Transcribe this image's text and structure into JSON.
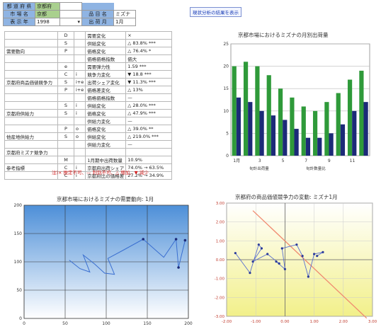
{
  "selector": {
    "rows": [
      {
        "label": "都 道 府 県",
        "value": "京都府",
        "label2": "",
        "value2": ""
      },
      {
        "label": "市 場 名",
        "value": "京都",
        "label2": "品 目 名",
        "value2": "ミズナ"
      },
      {
        "label": "表 示 年",
        "value": "1998",
        "label2": "出 荷 月",
        "value2": "1月"
      }
    ],
    "button_label": "現状分析の結果を表示"
  },
  "table": {
    "groups": [
      {
        "name": "需要動向",
        "rows": [
          {
            "sym": "D",
            "sub": "",
            "name": "需要変化",
            "val": "×"
          },
          {
            "sym": "S",
            "sub": "",
            "name": "供給変化",
            "val": "△ 83.8% ***"
          },
          {
            "sym": "P",
            "sub": "",
            "name": "価格変化",
            "val": "△ 76.4% *"
          },
          {
            "sym": "",
            "sub": "",
            "name": "価格価格指数",
            "val": "価大"
          },
          {
            "sym": "e",
            "sub": "",
            "name": "需要弾力性",
            "val": "1.59 ***"
          }
        ]
      },
      {
        "name": "京都府商品価値競争力",
        "rows": [
          {
            "sym": "C",
            "sub": "i",
            "name": "競争力変化",
            "val": "▼ 18.8 ***"
          },
          {
            "sym": "S",
            "sub": "i+e",
            "name": "出荷シェア変化",
            "val": "▼ 11.3% ***"
          },
          {
            "sym": "P",
            "sub": "i+e",
            "name": "価格差変化",
            "val": "△ 13%"
          },
          {
            "sym": "",
            "sub": "",
            "name": "価格価格指数",
            "val": "—"
          }
        ]
      },
      {
        "name": "京都府供給力",
        "rows": [
          {
            "sym": "S",
            "sub": "i",
            "name": "供給変化",
            "val": "△ 28.0% ***"
          },
          {
            "sym": "S",
            "sub": "i",
            "name": "価格変化",
            "val": "△ 47.9% ***"
          },
          {
            "sym": "",
            "sub": "",
            "name": "供給力変化",
            "val": "—"
          }
        ]
      },
      {
        "name": "他産地供給力",
        "rows": [
          {
            "sym": "P",
            "sub": "o",
            "name": "価格変化",
            "val": "△ 39.0% **"
          },
          {
            "sym": "S",
            "sub": "o",
            "name": "供給変化",
            "val": "△ 219.0% ***"
          },
          {
            "sym": "",
            "sub": "",
            "name": "供給力変化",
            "val": "—"
          }
        ]
      },
      {
        "name": "京都府ミズナ競争力",
        "rows": [
          {
            "sym": "",
            "sub": "",
            "name": "",
            "val": ""
          }
        ]
      },
      {
        "name": "参考指標",
        "rows": [
          {
            "sym": "M",
            "sub": "",
            "name": "1月期中出荷数量",
            "val": "10.9%"
          },
          {
            "sym": "C",
            "sub": "i",
            "name": "京都府出荷シェア",
            "val": "74.0% → 63.5%"
          },
          {
            "sym": "C",
            "sub": "i",
            "name": "京都府比の価格差",
            "val": "27.2% → 34.9%"
          }
        ]
      }
    ],
    "legend": "注)× 推定不可、— 判別不可、△ 増加、▼ 減少"
  },
  "charts": [
    {
      "chart_data": {
        "type": "bar",
        "title": "京都市場におけるミズナの月別出荷量",
        "xlabel": "",
        "ylabel": "",
        "ylim": [
          0,
          25
        ],
        "yticks": [
          0,
          5,
          10,
          15,
          20,
          25
        ],
        "categories": [
          "1月",
          "2月",
          "3月",
          "4月",
          "5月",
          "6月",
          "7月",
          "8月",
          "9月",
          "10月",
          "11月",
          "12月"
        ],
        "xtick_labels": [
          "1月",
          "",
          "3",
          "",
          "5",
          "",
          "7",
          "",
          "9",
          "",
          "11",
          ""
        ],
        "legend": [
          "旬計出荷量",
          "旬計数量比"
        ],
        "series": [
          {
            "name": "旬計出荷量",
            "values": [
              20,
              21,
              20,
              18,
              15,
              13,
              11,
              10,
              12,
              14,
              17,
              19
            ]
          },
          {
            "name": "旬計数量比",
            "values": [
              13,
              12,
              10,
              9,
              8,
              6,
              4,
              4,
              5,
              7,
              10,
              12
            ]
          }
        ]
      },
      "colors": {
        "green": "#2f9a3a",
        "blue": "#1c2a78",
        "bg": "#ffffff"
      }
    },
    {
      "chart_data": {
        "type": "line",
        "title": "京都市場におけるミズナの需要動向: 1月",
        "xlabel": "",
        "ylabel": "",
        "xlim": [
          0,
          200
        ],
        "ylim": [
          0,
          200
        ],
        "xticks": [
          0,
          50,
          100,
          150,
          200
        ],
        "yticks": [
          0,
          50,
          100,
          150,
          200
        ],
        "points": [
          [
            55,
            103
          ],
          [
            68,
            88
          ],
          [
            80,
            82
          ],
          [
            72,
            112
          ],
          [
            86,
            96
          ],
          [
            98,
            80
          ],
          [
            110,
            78
          ],
          [
            102,
            106
          ],
          [
            120,
            120
          ],
          [
            145,
            140
          ],
          [
            170,
            108
          ],
          [
            185,
            140
          ],
          [
            188,
            90
          ],
          [
            196,
            138
          ]
        ]
      },
      "colors": {
        "line": "#3a6fd0",
        "bg_top": "#4d8fd8",
        "bg_bottom": "#ffffff"
      }
    },
    {
      "chart_data": {
        "type": "scatter",
        "title": "京都府の商品価値競争力の変動: ミズナ1月",
        "xlabel": "",
        "ylabel": "",
        "xlim": [
          -200,
          300
        ],
        "ylim": [
          -300,
          300
        ],
        "xticks": [
          -200,
          -100,
          0,
          100,
          200,
          300
        ],
        "xtick_labels": [
          "-2.00",
          "-1.00",
          "0.00",
          "1.00",
          "2.00",
          "3.00"
        ],
        "yticks": [
          -300,
          -200,
          -100,
          0,
          100,
          200,
          300
        ],
        "ytick_labels": [
          "-3.00",
          "-2.00",
          "-1.00",
          "0.00",
          "1.00",
          "2.00",
          "3.00"
        ],
        "points": [
          [
            -170,
            35
          ],
          [
            -120,
            -70
          ],
          [
            -90,
            80
          ],
          [
            -80,
            60
          ],
          [
            -110,
            -10
          ],
          [
            -60,
            30
          ],
          [
            -20,
            -20
          ],
          [
            -30,
            -10
          ],
          [
            0,
            -50
          ],
          [
            -10,
            60
          ],
          [
            40,
            80
          ],
          [
            60,
            20
          ],
          [
            80,
            -90
          ],
          [
            100,
            30
          ],
          [
            130,
            40
          ],
          [
            110,
            20
          ]
        ],
        "trend": [
          [
            -110,
            260
          ],
          [
            280,
            -310
          ]
        ]
      },
      "colors": {
        "points": "#5a6fd0",
        "trend": "#f08a70",
        "bg_top": "#ffffff",
        "bg_bottom": "#f2f08a"
      }
    }
  ]
}
